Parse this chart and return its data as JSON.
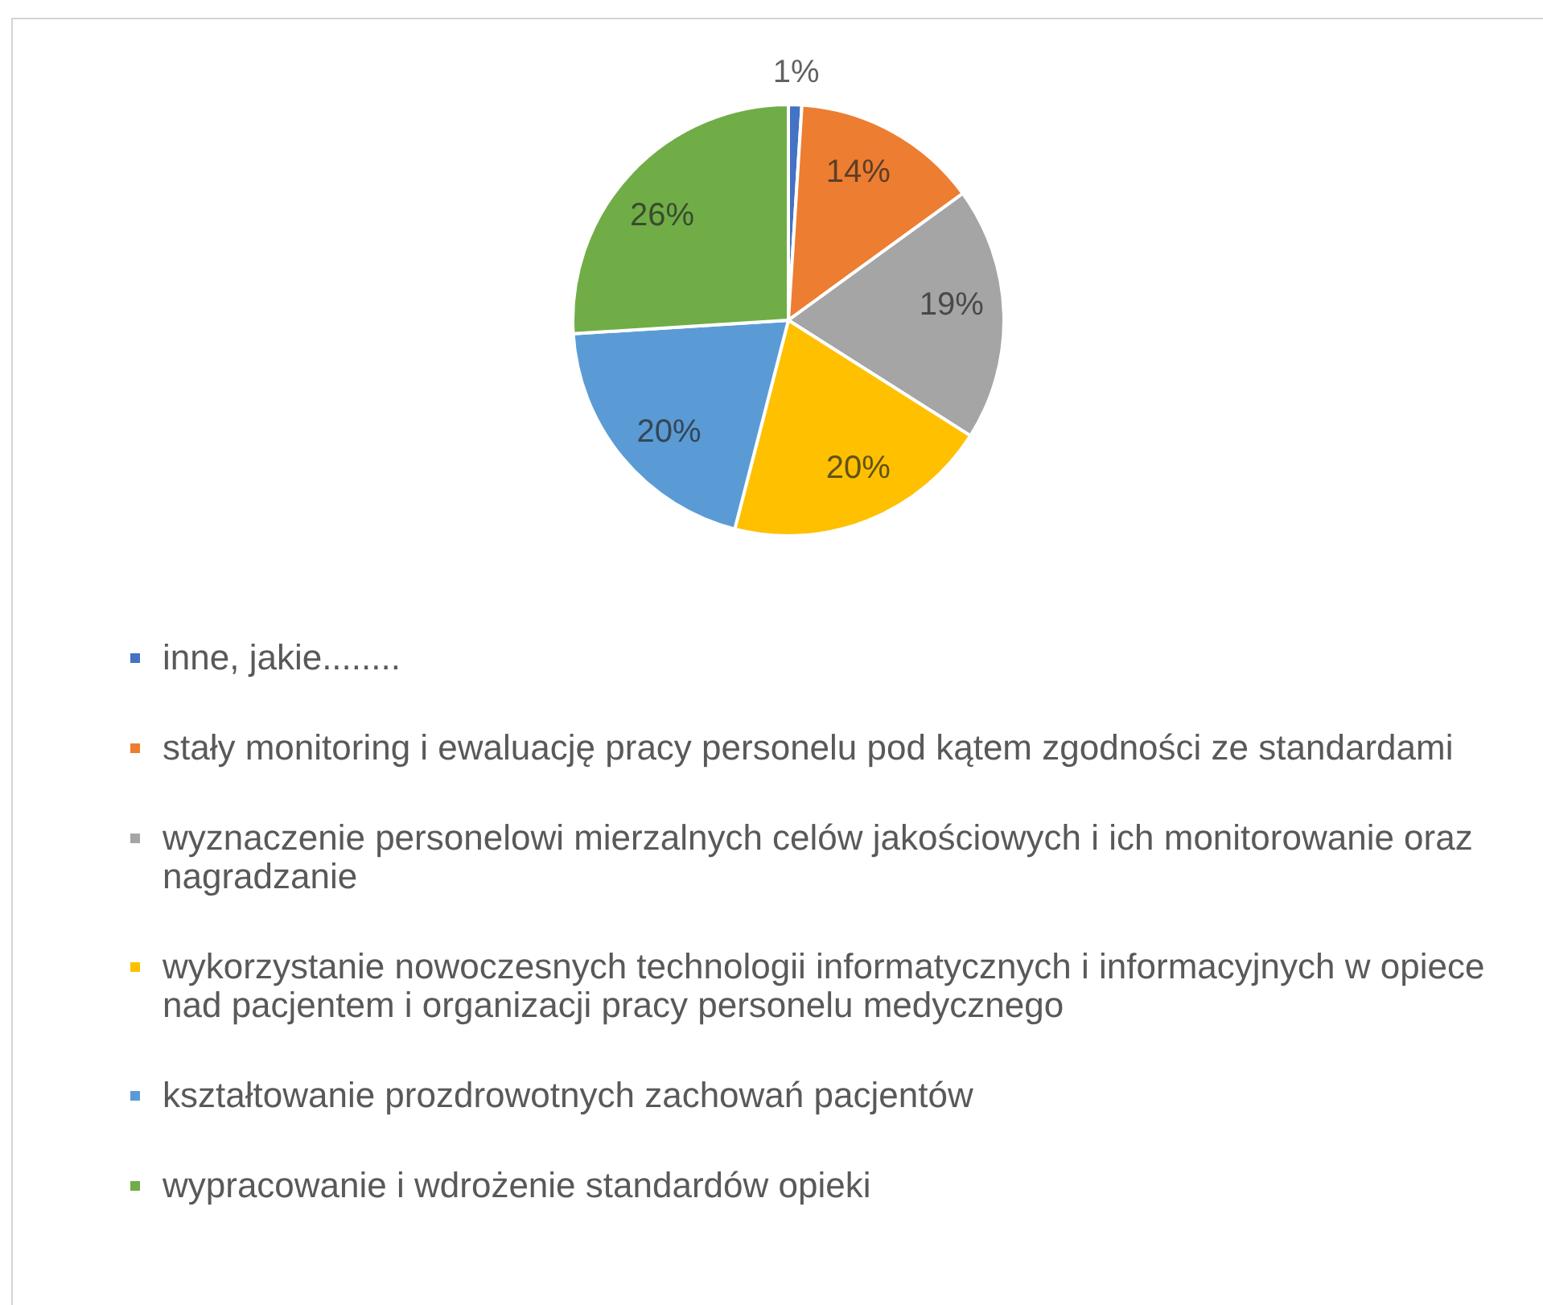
{
  "chart_data": {
    "type": "pie",
    "categories": [
      "inne, jakie........",
      "stały monitoring i ewaluację pracy personelu pod kątem zgodności ze standardami",
      "wyznaczenie personelowi mierzalnych celów jakościowych i ich monitorowanie oraz nagradzanie",
      "wykorzystanie nowoczesnych technologii informatycznych i informacyjnych w opiece nad pacjentem i organizacji pracy personelu medycznego",
      "kształtowanie prozdrowotnych zachowań pacjentów",
      "wypracowanie i wdrożenie standardów opieki"
    ],
    "values": [
      1,
      14,
      19,
      20,
      20,
      26
    ],
    "colors": [
      "#4472c4",
      "#ed7d31",
      "#a5a5a5",
      "#ffc000",
      "#5b9bd5",
      "#70ad47"
    ],
    "value_labels": [
      "1%",
      "14%",
      "19%",
      "20%",
      "20%",
      "26%"
    ],
    "legend": "bottom"
  }
}
